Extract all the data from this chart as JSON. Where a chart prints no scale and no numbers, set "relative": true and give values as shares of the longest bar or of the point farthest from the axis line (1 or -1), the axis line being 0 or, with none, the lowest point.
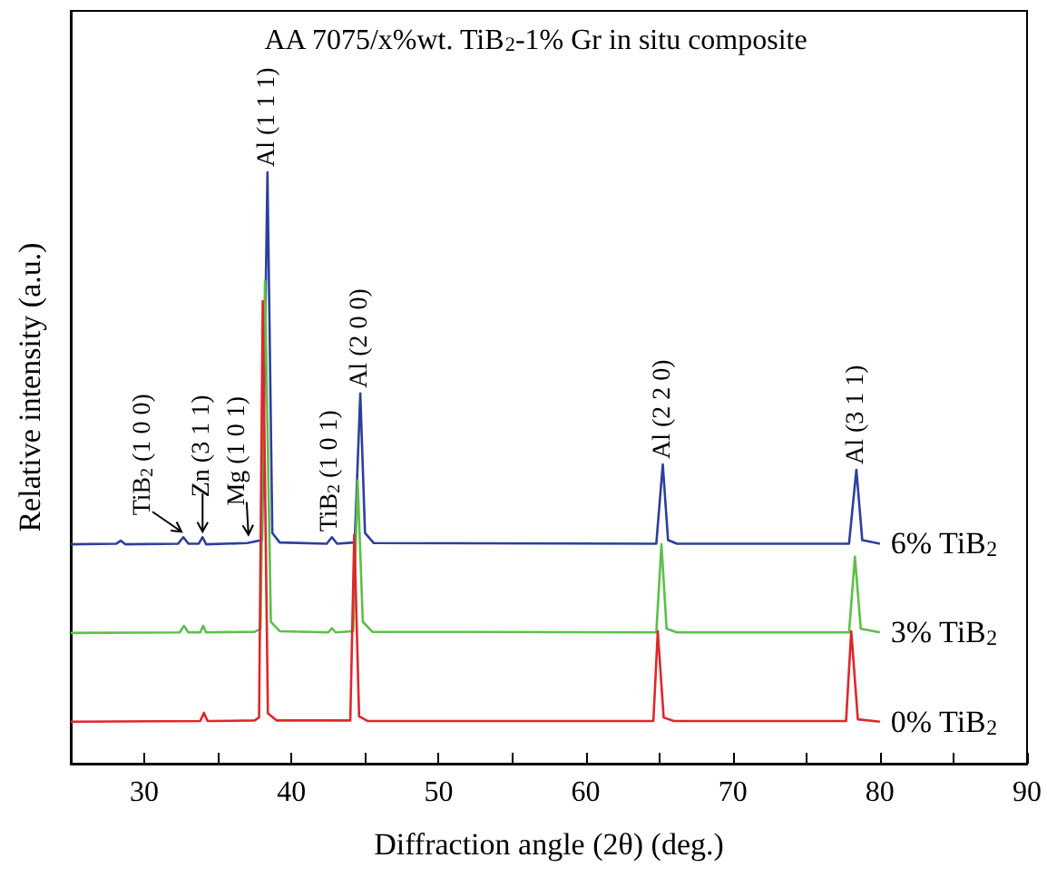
{
  "chart_data": {
    "type": "line",
    "title": "AA 7075/x%wt. TiB$_{2}$-1% Gr in situ composite",
    "xlabel": "Diffraction angle (2θ) (deg.)",
    "ylabel": "Relative intensity (a.u.)",
    "relative": true,
    "xlim": [
      25,
      90
    ],
    "xticks": [
      {
        "value": 25,
        "label": null
      },
      30,
      {
        "value": 35,
        "label": null
      },
      40,
      {
        "value": 45,
        "label": null
      },
      50,
      {
        "value": 55,
        "label": null
      },
      60,
      {
        "value": 65,
        "label": null
      },
      70,
      {
        "value": 75,
        "label": null
      },
      80,
      {
        "value": 85,
        "label": null
      },
      90
    ],
    "grid": false,
    "legend": false,
    "marker": "none",
    "line_style": "solid",
    "tick_labels": "x",
    "series": [
      {
        "name": "6% TiB$_{2}$",
        "color": "#2b3f9e",
        "x": [
          25,
          28.1,
          28.4,
          28.7,
          32.3,
          32.65,
          33.0,
          33.7,
          33.96,
          34.2,
          37.0,
          38.0,
          38.37,
          38.7,
          39.2,
          42.4,
          42.75,
          43.1,
          44.3,
          44.68,
          45.0,
          45.6,
          64.8,
          65.24,
          65.6,
          66.2,
          77.9,
          78.4,
          78.8,
          80
        ],
        "values": [
          0.371,
          0.372,
          0.377,
          0.371,
          0.372,
          0.383,
          0.372,
          0.372,
          0.383,
          0.371,
          0.373,
          0.378,
          1.0,
          0.39,
          0.374,
          0.372,
          0.383,
          0.372,
          0.374,
          0.626,
          0.39,
          0.373,
          0.372,
          0.506,
          0.378,
          0.372,
          0.372,
          0.497,
          0.378,
          0.372
        ]
      },
      {
        "name": "3% TiB$_{2}$",
        "color": "#5cc04a",
        "x": [
          25,
          32.4,
          32.7,
          33.0,
          33.8,
          34.0,
          34.2,
          37.5,
          37.9,
          38.2,
          38.6,
          39.2,
          42.5,
          42.75,
          43.0,
          44.2,
          44.5,
          44.85,
          45.5,
          64.8,
          65.15,
          65.5,
          66.2,
          77.9,
          78.3,
          78.7,
          80
        ],
        "values": [
          0.221,
          0.222,
          0.233,
          0.222,
          0.222,
          0.233,
          0.222,
          0.223,
          0.228,
          0.816,
          0.24,
          0.224,
          0.222,
          0.229,
          0.222,
          0.224,
          0.479,
          0.24,
          0.223,
          0.222,
          0.371,
          0.228,
          0.222,
          0.222,
          0.35,
          0.228,
          0.222
        ]
      },
      {
        "name": "0% TiB$_{2}$",
        "color": "#e0262b",
        "x": [
          25,
          33.8,
          34.05,
          34.3,
          37.5,
          37.8,
          38.05,
          38.4,
          39.0,
          44.0,
          44.27,
          44.6,
          45.2,
          64.6,
          64.9,
          65.3,
          66.0,
          77.7,
          78.05,
          78.5,
          80
        ],
        "values": [
          0.071,
          0.072,
          0.086,
          0.072,
          0.073,
          0.078,
          0.782,
          0.085,
          0.073,
          0.073,
          0.387,
          0.08,
          0.072,
          0.072,
          0.224,
          0.078,
          0.072,
          0.072,
          0.224,
          0.075,
          0.071
        ]
      }
    ],
    "annotations": [
      {
        "text": "TiB$_{2}$ (1 0 0)",
        "x": 32.65,
        "y": 0.383
      },
      {
        "text": "Zn (3 1 1)",
        "x": 33.96,
        "y": 0.383
      },
      {
        "text": "Mg (1 0 1)",
        "x": 37.2,
        "y": 0.378
      },
      {
        "text": "Al (1 1 1)",
        "x": 38.37,
        "y": 1.0
      },
      {
        "text": "TiB$_{2}$ (1 0 1)",
        "x": 42.75,
        "y": 0.383
      },
      {
        "text": "Al (2 0 0)",
        "x": 44.68,
        "y": 0.626
      },
      {
        "text": "Al (2 2 0)",
        "x": 65.24,
        "y": 0.506
      },
      {
        "text": "Al (3 1 1)",
        "x": 78.4,
        "y": 0.497
      }
    ]
  }
}
